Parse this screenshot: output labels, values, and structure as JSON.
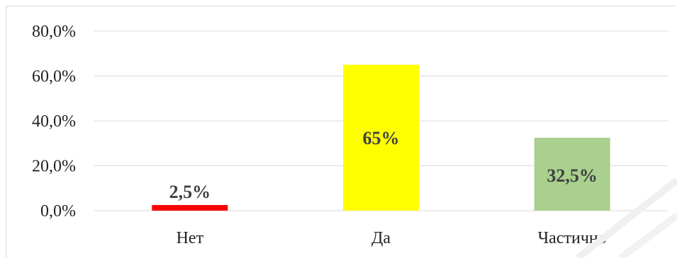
{
  "chart_data": {
    "type": "bar",
    "categories": [
      "Нет",
      "Да",
      "Частично"
    ],
    "values": [
      2.5,
      65,
      32.5
    ],
    "data_labels": [
      "2,5%",
      "65%",
      "32,5%"
    ],
    "bar_colors": [
      "#ff0000",
      "#ffff00",
      "#a9d08e"
    ],
    "ylim": [
      0,
      80
    ],
    "y_ticks": [
      0,
      20,
      40,
      60,
      80
    ],
    "y_tick_labels": [
      "0,0%",
      "20,0%",
      "40,0%",
      "60,0%",
      "80,0%"
    ],
    "grid": true,
    "legend": "none",
    "title": "",
    "xlabel": "",
    "ylabel": ""
  }
}
